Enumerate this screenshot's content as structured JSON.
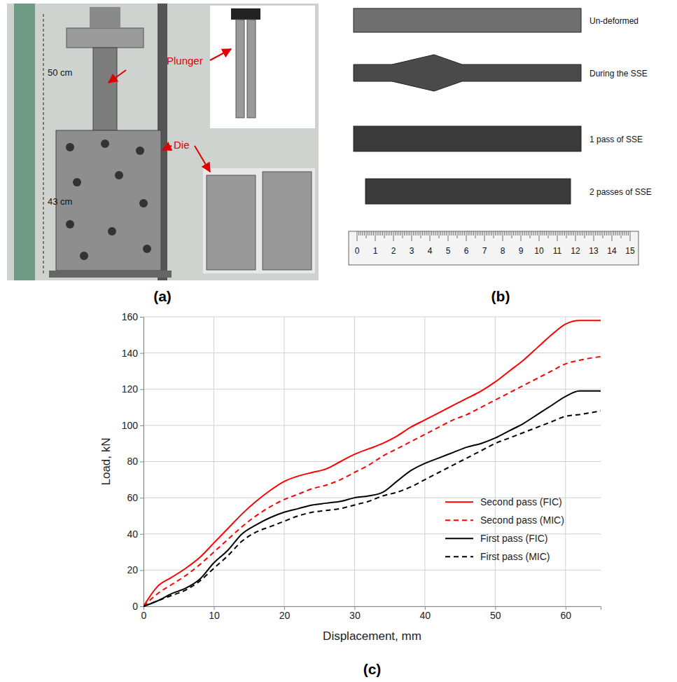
{
  "chart_data": {
    "type": "line",
    "panel_label": "(c)",
    "x_label": "Displacement, mm",
    "y_label": "Load, kN",
    "x": [
      0,
      2,
      4,
      6,
      8,
      10,
      12,
      14,
      16,
      18,
      20,
      22,
      24,
      26,
      28,
      30,
      32,
      34,
      36,
      38,
      40,
      42,
      44,
      46,
      48,
      50,
      52,
      54,
      56,
      58,
      60,
      62,
      65
    ],
    "series": [
      {
        "name": "Second pass (FIC)",
        "color": "#ff0000",
        "line_style": "solid",
        "values": [
          0,
          11,
          16,
          21,
          27,
          35,
          43,
          51,
          58,
          64,
          69,
          72,
          74,
          76,
          80,
          84,
          87,
          90,
          94,
          99,
          103,
          107,
          111,
          115,
          119,
          124,
          130,
          136,
          143,
          150,
          156,
          158,
          158
        ]
      },
      {
        "name": "Second pass (MIC)",
        "color": "#ff0000",
        "line_style": "dashed",
        "values": [
          0,
          7,
          12,
          17,
          23,
          30,
          37,
          44,
          50,
          55,
          59,
          62,
          65,
          67,
          70,
          74,
          78,
          83,
          87,
          91,
          95,
          99,
          103,
          106,
          110,
          114,
          118,
          122,
          126,
          130,
          134,
          136,
          138
        ]
      },
      {
        "name": "First pass (FIC)",
        "color": "#000000",
        "line_style": "solid",
        "values": [
          0,
          3,
          7,
          10,
          15,
          24,
          31,
          40,
          45,
          49,
          52,
          54,
          56,
          57,
          58,
          60,
          61,
          63,
          69,
          75,
          79,
          82,
          85,
          88,
          90,
          93,
          97,
          101,
          106,
          111,
          116,
          119,
          119
        ]
      },
      {
        "name": "First pass (MIC)",
        "color": "#000000",
        "line_style": "dashed",
        "values": [
          0,
          3,
          6,
          9,
          14,
          21,
          28,
          36,
          41,
          44,
          47,
          50,
          52,
          53,
          54,
          56,
          58,
          61,
          63,
          66,
          70,
          74,
          78,
          82,
          86,
          90,
          93,
          96,
          99,
          102,
          105,
          106,
          108
        ]
      }
    ],
    "xlim": [
      0,
      65
    ],
    "xticks": [
      0,
      10,
      20,
      30,
      40,
      50,
      60
    ],
    "ylim": [
      0,
      160
    ],
    "yticks": [
      0,
      20,
      40,
      60,
      80,
      100,
      120,
      140,
      160
    ],
    "grid": true,
    "legend": "lower right"
  },
  "figure": {
    "panel_a": {
      "label": "(a)",
      "plunger_height": "50 cm",
      "die_height": "43 cm",
      "plunger": "Plunger",
      "die": "Die"
    },
    "panel_b": {
      "label": "(b)",
      "specimens": [
        "Un-deformed",
        "During the SSE",
        "1 pass of SSE",
        "2 passes of SSE"
      ],
      "ruler_ticks": [
        0,
        1,
        2,
        3,
        4,
        5,
        6,
        7,
        8,
        9,
        10,
        11,
        12,
        13,
        14,
        15
      ]
    }
  }
}
